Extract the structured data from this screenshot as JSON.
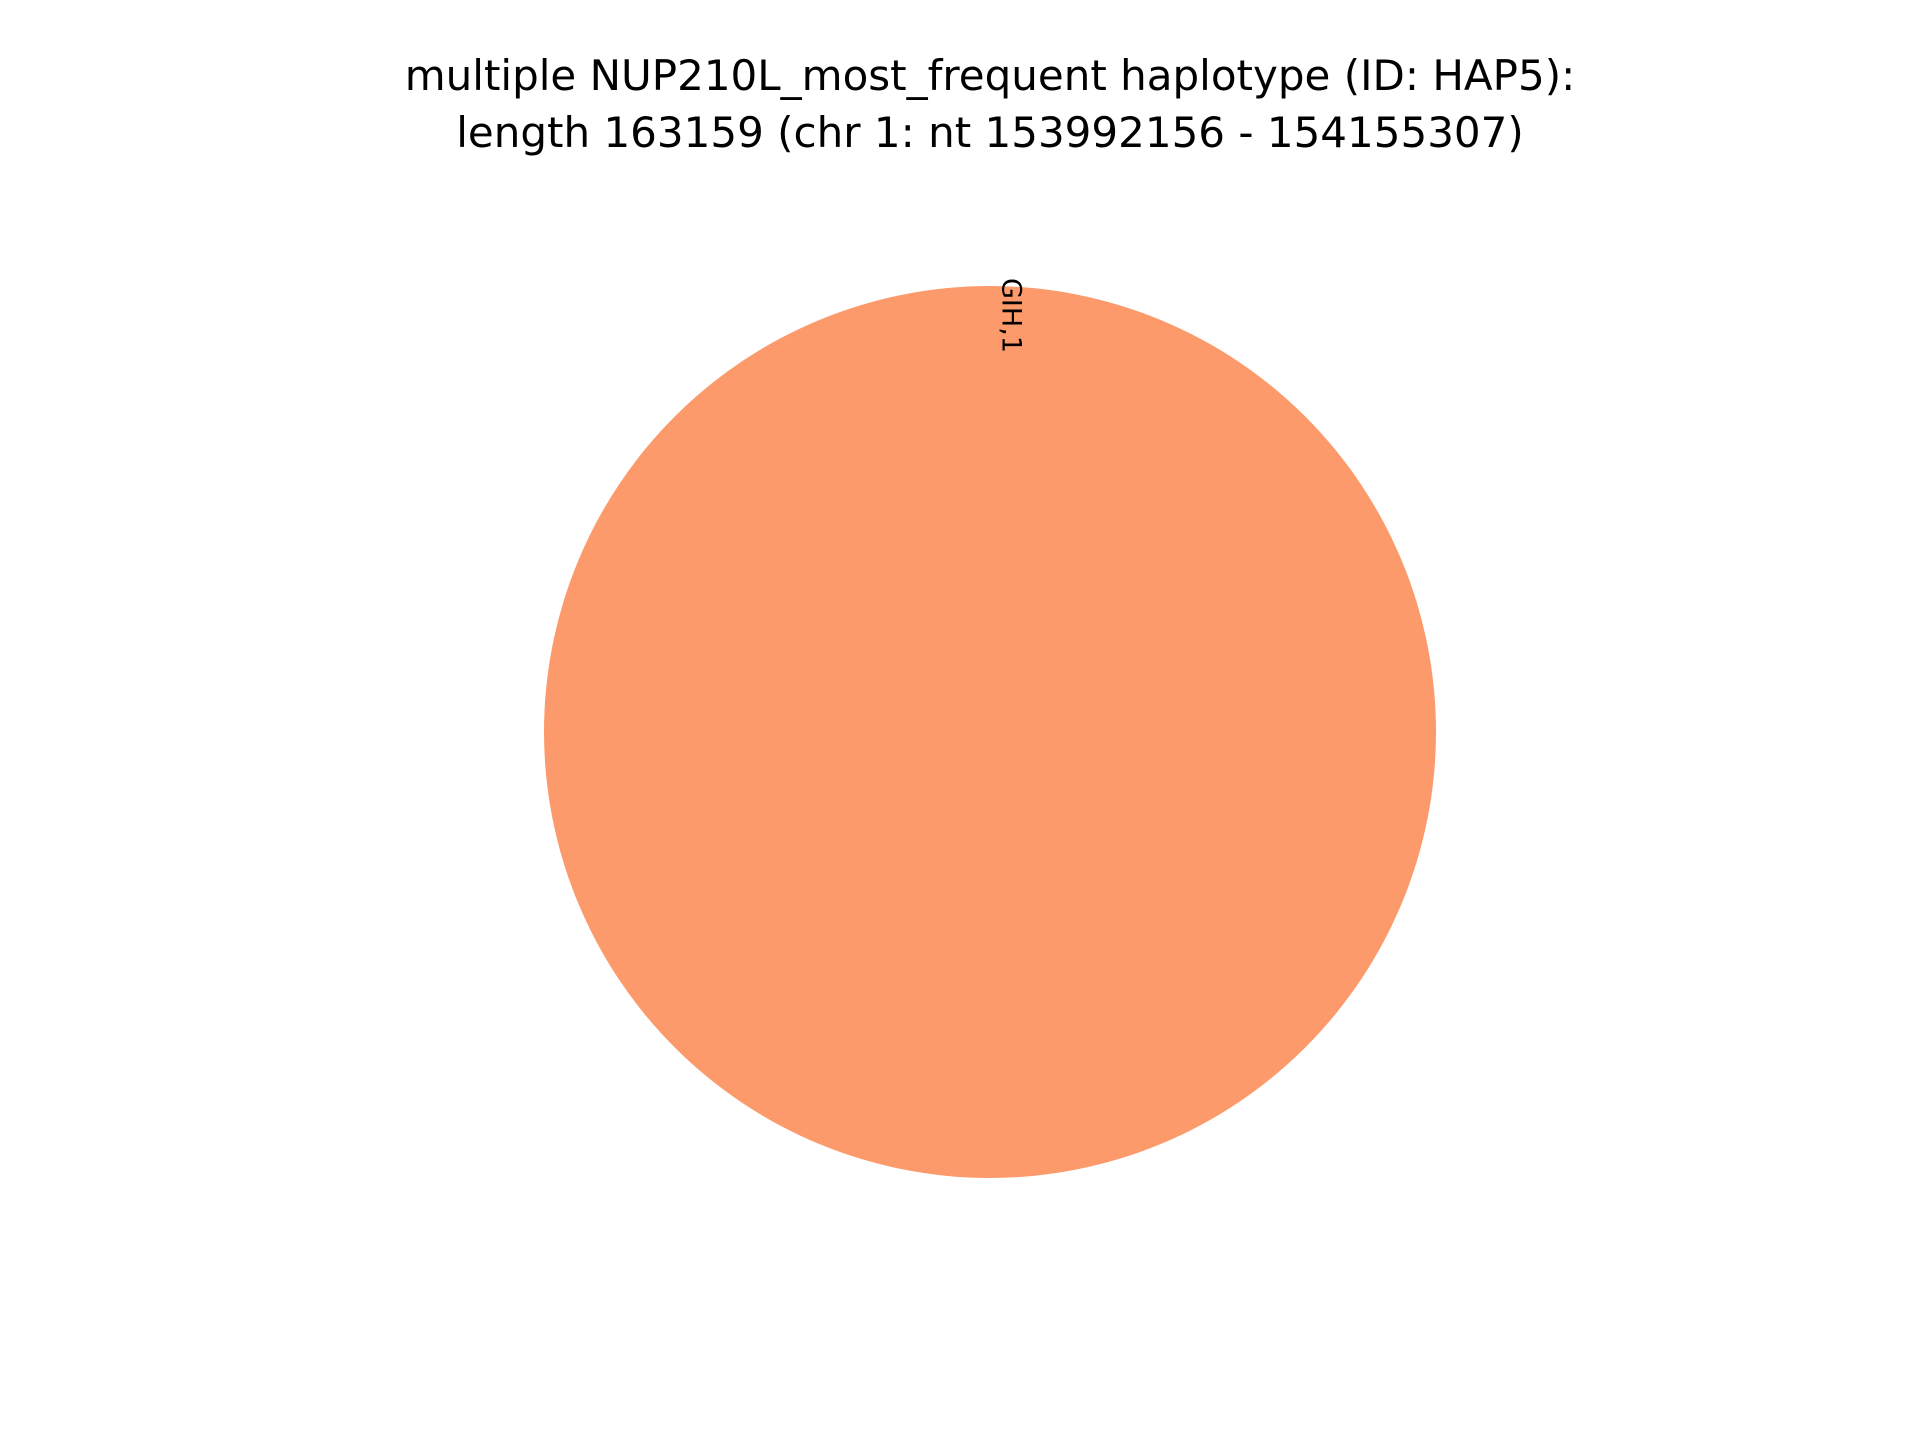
{
  "chart_data": {
    "type": "pie",
    "title": {
      "line1": "multiple NUP210L_most_frequent haplotype (ID: HAP5):",
      "line2": "length 163159 (chr 1: nt 153992156 - 154155307)"
    },
    "slices": [
      {
        "label": "GIH,1",
        "value": 1,
        "color": "#FC9A6B"
      }
    ]
  }
}
